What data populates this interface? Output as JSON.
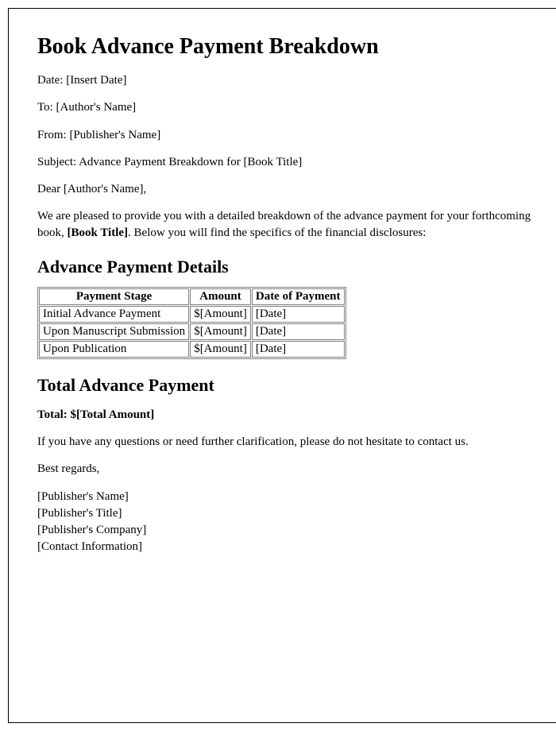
{
  "title": "Book Advance Payment Breakdown",
  "meta": {
    "date_label": "Date: ",
    "date_value": "[Insert Date]",
    "to_label": "To: ",
    "to_value": "[Author's Name]",
    "from_label": "From: ",
    "from_value": "[Publisher's Name]",
    "subject_label": "Subject: ",
    "subject_value": "Advance Payment Breakdown for [Book Title]"
  },
  "salutation_prefix": "Dear ",
  "salutation_name": "[Author's Name]",
  "salutation_suffix": ",",
  "intro_before": "We are pleased to provide you with a detailed breakdown of the advance payment for your forthcoming book, ",
  "intro_bold": "[Book Title]",
  "intro_after": ". Below you will find the specifics of the financial disclosures:",
  "details_heading": "Advance Payment Details",
  "table": {
    "columns": [
      "Payment Stage",
      "Amount",
      "Date of Payment"
    ],
    "rows": [
      [
        "Initial Advance Payment",
        "$[Amount]",
        "[Date]"
      ],
      [
        "Upon Manuscript Submission",
        "$[Amount]",
        "[Date]"
      ],
      [
        "Upon Publication",
        "$[Amount]",
        "[Date]"
      ]
    ]
  },
  "total_heading": "Total Advance Payment",
  "total_label": "Total: ",
  "total_value": "$[Total Amount]",
  "closing_note": "If you have any questions or need further clarification, please do not hesitate to contact us.",
  "closing_salutation": "Best regards,",
  "signature": {
    "name": "[Publisher's Name]",
    "title": "[Publisher's Title]",
    "company": "[Publisher's Company]",
    "contact": "[Contact Information]"
  }
}
